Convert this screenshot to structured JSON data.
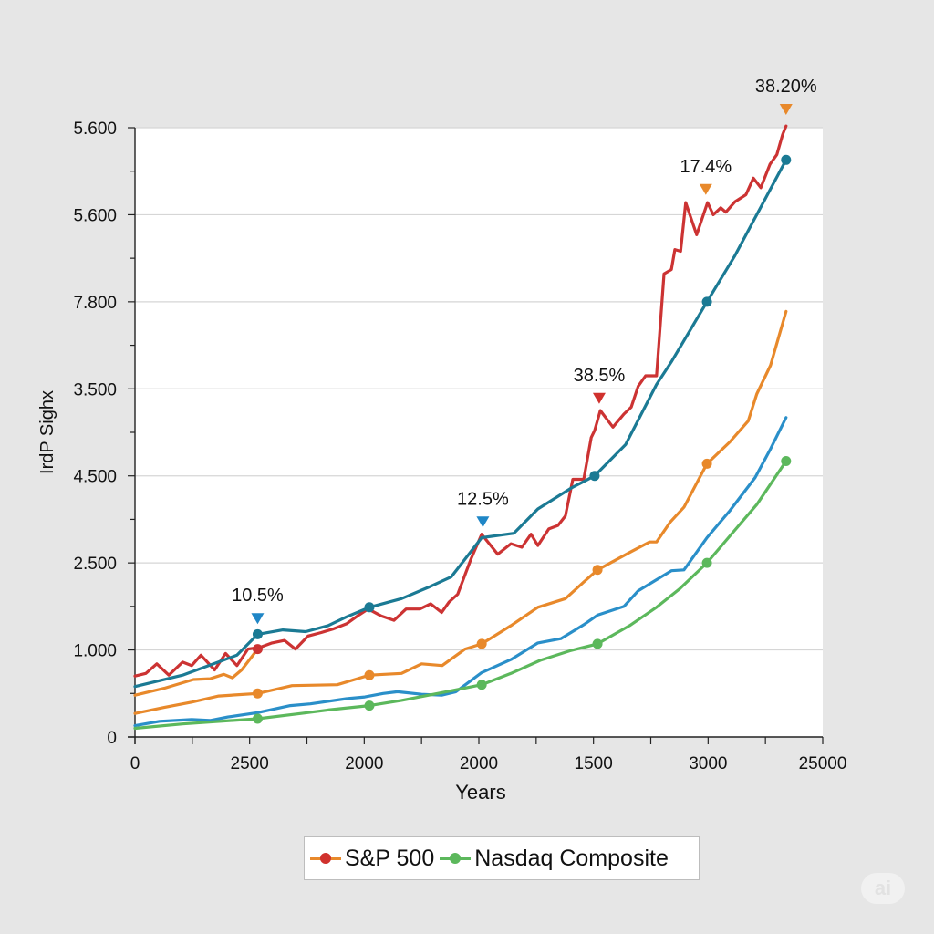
{
  "chart_data": {
    "type": "line",
    "title": "",
    "xlabel": "Years",
    "ylabel": "IrdP Sighx",
    "grid": true,
    "x_ticks": {
      "count": 13,
      "labels": [
        {
          "index": 0,
          "text": "0"
        },
        {
          "index": 2,
          "text": "2500"
        },
        {
          "index": 4,
          "text": "2000"
        },
        {
          "index": 6,
          "text": "2000"
        },
        {
          "index": 8,
          "text": "1500"
        },
        {
          "index": 10,
          "text": "3000"
        },
        {
          "index": 12,
          "text": "25000"
        }
      ]
    },
    "y_ticks": {
      "labels": [
        {
          "index": 0,
          "text": "0"
        },
        {
          "index": 1,
          "text": "1.000"
        },
        {
          "index": 2,
          "text": "2.500"
        },
        {
          "index": 3,
          "text": "4.500"
        },
        {
          "index": 4,
          "text": "3.500"
        },
        {
          "index": 5,
          "text": "7.800"
        },
        {
          "index": 6,
          "text": "5.600"
        },
        {
          "index": 7,
          "text": "5.600"
        }
      ]
    },
    "xlim": [
      0,
      12
    ],
    "ylim": [
      0,
      7
    ],
    "legend": {
      "placement": "bottom-center",
      "entries": [
        {
          "label": "S&P 500",
          "line_color": "#e8892b",
          "dot_color": "#d0312d"
        },
        {
          "label": "Nasdaq Composite",
          "line_color": "#5cb85c",
          "dot_color": "#5cb85c"
        }
      ]
    },
    "series": [
      {
        "name": "S&P 500",
        "color": "#cc3333",
        "points": [
          [
            0,
            0.7
          ],
          [
            0.19,
            0.73
          ],
          [
            0.38,
            0.84
          ],
          [
            0.59,
            0.71
          ],
          [
            0.83,
            0.86
          ],
          [
            0.99,
            0.82
          ],
          [
            1.15,
            0.94
          ],
          [
            1.39,
            0.77
          ],
          [
            1.58,
            0.96
          ],
          [
            1.78,
            0.82
          ],
          [
            1.97,
            1.01
          ],
          [
            2.18,
            1.03
          ],
          [
            2.39,
            1.08
          ],
          [
            2.61,
            1.11
          ],
          [
            2.8,
            1.01
          ],
          [
            3.02,
            1.16
          ],
          [
            3.25,
            1.2
          ],
          [
            3.45,
            1.24
          ],
          [
            3.69,
            1.3
          ],
          [
            3.88,
            1.39
          ],
          [
            4.07,
            1.47
          ],
          [
            4.3,
            1.39
          ],
          [
            4.52,
            1.34
          ],
          [
            4.73,
            1.47
          ],
          [
            4.97,
            1.47
          ],
          [
            5.16,
            1.53
          ],
          [
            5.35,
            1.43
          ],
          [
            5.48,
            1.55
          ],
          [
            5.63,
            1.64
          ],
          [
            5.86,
            2.04
          ],
          [
            6.05,
            2.33
          ],
          [
            6.33,
            2.1
          ],
          [
            6.56,
            2.22
          ],
          [
            6.75,
            2.18
          ],
          [
            6.91,
            2.33
          ],
          [
            7.03,
            2.2
          ],
          [
            7.22,
            2.39
          ],
          [
            7.38,
            2.43
          ],
          [
            7.51,
            2.54
          ],
          [
            7.64,
            2.96
          ],
          [
            7.83,
            2.96
          ],
          [
            7.96,
            3.44
          ],
          [
            8.02,
            3.52
          ],
          [
            8.12,
            3.75
          ],
          [
            8.34,
            3.56
          ],
          [
            8.53,
            3.71
          ],
          [
            8.66,
            3.79
          ],
          [
            8.78,
            4.03
          ],
          [
            8.91,
            4.15
          ],
          [
            9.1,
            4.15
          ],
          [
            9.23,
            5.32
          ],
          [
            9.36,
            5.37
          ],
          [
            9.42,
            5.6
          ],
          [
            9.52,
            5.58
          ],
          [
            9.61,
            6.14
          ],
          [
            9.8,
            5.77
          ],
          [
            9.99,
            6.14
          ],
          [
            10.09,
            6.0
          ],
          [
            10.22,
            6.08
          ],
          [
            10.31,
            6.03
          ],
          [
            10.47,
            6.15
          ],
          [
            10.66,
            6.23
          ],
          [
            10.79,
            6.42
          ],
          [
            10.92,
            6.31
          ],
          [
            11.08,
            6.58
          ],
          [
            11.2,
            6.69
          ],
          [
            11.3,
            6.92
          ],
          [
            11.36,
            7.02
          ]
        ],
        "markers": [
          [
            2.14,
            1.01
          ]
        ]
      },
      {
        "name": "Teal series",
        "color": "#1b7a94",
        "points": [
          [
            0,
            0.58
          ],
          [
            0.83,
            0.71
          ],
          [
            1.78,
            0.94
          ],
          [
            2.14,
            1.18
          ],
          [
            2.58,
            1.23
          ],
          [
            2.98,
            1.21
          ],
          [
            3.37,
            1.28
          ],
          [
            3.69,
            1.38
          ],
          [
            4.09,
            1.49
          ],
          [
            4.65,
            1.59
          ],
          [
            5.12,
            1.72
          ],
          [
            5.52,
            1.84
          ],
          [
            6.05,
            2.29
          ],
          [
            6.61,
            2.34
          ],
          [
            7.03,
            2.62
          ],
          [
            7.61,
            2.86
          ],
          [
            8.02,
            3.0
          ],
          [
            8.56,
            3.36
          ],
          [
            9.1,
            4.05
          ],
          [
            9.37,
            4.32
          ],
          [
            9.98,
            5.0
          ],
          [
            10.46,
            5.52
          ],
          [
            11.36,
            6.63
          ]
        ],
        "markers": [
          [
            2.14,
            1.18
          ],
          [
            4.09,
            1.49
          ],
          [
            8.02,
            3.0
          ],
          [
            9.98,
            5.0
          ],
          [
            11.36,
            6.63
          ]
        ]
      },
      {
        "name": "Orange upper series",
        "color": "#e8892b",
        "points": [
          [
            0,
            0.48
          ],
          [
            0.51,
            0.56
          ],
          [
            1.02,
            0.66
          ],
          [
            1.31,
            0.67
          ],
          [
            1.55,
            0.72
          ],
          [
            1.7,
            0.68
          ],
          [
            1.86,
            0.77
          ],
          [
            2.14,
            1.01
          ]
        ],
        "markers": []
      },
      {
        "name": "Orange series",
        "color": "#e8892b",
        "points": [
          [
            0,
            0.27
          ],
          [
            0.51,
            0.34
          ],
          [
            0.99,
            0.4
          ],
          [
            1.46,
            0.47
          ],
          [
            2.14,
            0.5
          ],
          [
            2.74,
            0.59
          ],
          [
            3.53,
            0.6
          ],
          [
            4.09,
            0.71
          ],
          [
            4.65,
            0.73
          ],
          [
            5.0,
            0.84
          ],
          [
            5.36,
            0.82
          ],
          [
            5.76,
            1.01
          ],
          [
            6.05,
            1.07
          ],
          [
            6.32,
            1.18
          ],
          [
            6.56,
            1.28
          ],
          [
            7.03,
            1.49
          ],
          [
            7.51,
            1.59
          ],
          [
            7.83,
            1.78
          ],
          [
            8.07,
            1.92
          ],
          [
            8.63,
            2.12
          ],
          [
            8.98,
            2.24
          ],
          [
            9.1,
            2.24
          ],
          [
            9.34,
            2.47
          ],
          [
            9.58,
            2.64
          ],
          [
            9.98,
            3.14
          ],
          [
            10.38,
            3.39
          ],
          [
            10.7,
            3.63
          ],
          [
            10.85,
            3.94
          ],
          [
            11.09,
            4.27
          ],
          [
            11.36,
            4.89
          ]
        ],
        "markers": [
          [
            2.14,
            0.5
          ],
          [
            4.09,
            0.71
          ],
          [
            6.05,
            1.07
          ],
          [
            8.07,
            1.92
          ],
          [
            9.98,
            3.14
          ]
        ]
      },
      {
        "name": "Blue series",
        "color": "#2a8fc9",
        "points": [
          [
            0,
            0.13
          ],
          [
            0.43,
            0.18
          ],
          [
            0.99,
            0.2
          ],
          [
            1.31,
            0.19
          ],
          [
            1.62,
            0.23
          ],
          [
            2.14,
            0.28
          ],
          [
            2.71,
            0.36
          ],
          [
            3.06,
            0.38
          ],
          [
            3.69,
            0.44
          ],
          [
            4.01,
            0.46
          ],
          [
            4.33,
            0.5
          ],
          [
            4.58,
            0.52
          ],
          [
            5.0,
            0.49
          ],
          [
            5.35,
            0.48
          ],
          [
            5.6,
            0.52
          ],
          [
            6.05,
            0.74
          ],
          [
            6.56,
            0.89
          ],
          [
            7.03,
            1.08
          ],
          [
            7.43,
            1.13
          ],
          [
            7.83,
            1.29
          ],
          [
            8.07,
            1.4
          ],
          [
            8.53,
            1.5
          ],
          [
            8.78,
            1.68
          ],
          [
            9.36,
            1.91
          ],
          [
            9.58,
            1.92
          ],
          [
            9.98,
            2.29
          ],
          [
            10.38,
            2.6
          ],
          [
            10.82,
            2.98
          ],
          [
            11.09,
            3.31
          ],
          [
            11.36,
            3.67
          ]
        ],
        "markers": []
      },
      {
        "name": "Nasdaq Composite",
        "color": "#5cb85c",
        "points": [
          [
            0,
            0.1
          ],
          [
            0.83,
            0.15
          ],
          [
            2.14,
            0.21
          ],
          [
            2.9,
            0.27
          ],
          [
            3.37,
            0.31
          ],
          [
            4.09,
            0.36
          ],
          [
            4.65,
            0.42
          ],
          [
            5.28,
            0.5
          ],
          [
            6.05,
            0.6
          ],
          [
            6.56,
            0.73
          ],
          [
            7.07,
            0.88
          ],
          [
            7.59,
            0.99
          ],
          [
            8.07,
            1.07
          ],
          [
            8.63,
            1.28
          ],
          [
            9.1,
            1.49
          ],
          [
            9.5,
            1.7
          ],
          [
            9.98,
            2.0
          ],
          [
            10.38,
            2.31
          ],
          [
            10.85,
            2.67
          ],
          [
            11.36,
            3.17
          ]
        ],
        "markers": [
          [
            2.14,
            0.21
          ],
          [
            4.09,
            0.36
          ],
          [
            6.05,
            0.6
          ],
          [
            8.07,
            1.07
          ],
          [
            9.98,
            2.0
          ],
          [
            11.36,
            3.17
          ]
        ]
      }
    ],
    "annotations": [
      {
        "text": "10.5%",
        "x": 2.14,
        "y": 1.36,
        "marker_color": "#1f86c6"
      },
      {
        "text": "12.5%",
        "x": 6.07,
        "y": 2.47,
        "marker_color": "#1f86c6"
      },
      {
        "text": "38.5%",
        "x": 8.1,
        "y": 3.89,
        "marker_color": "#d0312d"
      },
      {
        "text": "17.4%",
        "x": 9.96,
        "y": 6.29,
        "marker_color": "#e8892b"
      },
      {
        "text": "38.20%",
        "x": 11.36,
        "y": 7.21,
        "marker_color": "#e8892b"
      }
    ]
  },
  "watermark": "ai"
}
